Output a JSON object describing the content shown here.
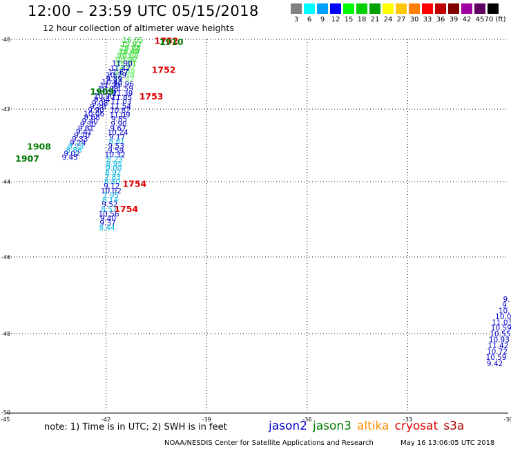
{
  "header": {
    "title": "12:00 – 23:59 UTC 05/15/2018",
    "subtitle": "12 hour collection of altimeter wave heights"
  },
  "legend": {
    "unit": "(ft)",
    "swatches": [
      {
        "label": "3",
        "color": "#808080"
      },
      {
        "label": "6",
        "color": "#00ffff"
      },
      {
        "label": "9",
        "color": "#00a0ff"
      },
      {
        "label": "12",
        "color": "#0000ff"
      },
      {
        "label": "15",
        "color": "#00ff00"
      },
      {
        "label": "18",
        "color": "#00d000"
      },
      {
        "label": "21",
        "color": "#00a000"
      },
      {
        "label": "24",
        "color": "#ffff00"
      },
      {
        "label": "27",
        "color": "#ffc800"
      },
      {
        "label": "30",
        "color": "#ff8000"
      },
      {
        "label": "33",
        "color": "#ff0000"
      },
      {
        "label": "36",
        "color": "#c00000"
      },
      {
        "label": "39",
        "color": "#800000"
      },
      {
        "label": "42",
        "color": "#a000a0"
      },
      {
        "label": "45",
        "color": "#600060"
      },
      {
        "label": "70",
        "color": "#000000"
      }
    ]
  },
  "axes": {
    "lon_ticks": [
      "-45",
      "-42",
      "-39",
      "-36",
      "-33",
      "-30"
    ],
    "lat_ticks": [
      "-40",
      "-42",
      "-44",
      "-46",
      "-48",
      "-50"
    ]
  },
  "colors": {
    "jason2": "#0000cc",
    "jason3": "#007a00",
    "altika": "#ff8c00",
    "cryosat": "#e00000",
    "s3a": "#b00000",
    "cyan": "#00b4e6",
    "green": "#22cc22",
    "lightgreen": "#66ee66"
  },
  "tracks": [
    {
      "id": "A",
      "points": [
        {
          "lon": -41.2,
          "lat": -40.02,
          "v": "16.05",
          "c": "green"
        },
        {
          "lon": -41.25,
          "lat": -40.14,
          "v": "15.92",
          "c": "green"
        },
        {
          "lon": -41.28,
          "lat": -40.24,
          "v": "16.08",
          "c": "green"
        },
        {
          "lon": -41.31,
          "lat": -40.35,
          "v": "16.49",
          "c": "green"
        },
        {
          "lon": -41.34,
          "lat": -40.46,
          "v": "16.88",
          "c": "green"
        },
        {
          "lon": -41.37,
          "lat": -40.57,
          "v": "17.32",
          "c": "green"
        },
        {
          "lon": -41.4,
          "lat": -40.69,
          "v": "15.11",
          "c": "green"
        },
        {
          "lon": -41.43,
          "lat": -40.8,
          "v": "14.07",
          "c": "lightgreen"
        },
        {
          "lon": -41.44,
          "lat": -40.92,
          "v": "12.49",
          "c": "lightgreen"
        },
        {
          "lon": -41.46,
          "lat": -41.03,
          "v": "12.59",
          "c": "lightgreen"
        },
        {
          "lon": -41.47,
          "lat": -41.14,
          "v": "12.42",
          "c": "lightgreen"
        },
        {
          "lon": -41.48,
          "lat": -41.28,
          "v": "10.96",
          "c": "jason2"
        },
        {
          "lon": -41.5,
          "lat": -41.41,
          "v": "11.59",
          "c": "jason2"
        },
        {
          "lon": -41.51,
          "lat": -41.54,
          "v": "11.39",
          "c": "jason2"
        },
        {
          "lon": -41.53,
          "lat": -41.66,
          "v": "11.85",
          "c": "jason2"
        },
        {
          "lon": -41.55,
          "lat": -41.78,
          "v": "11.03",
          "c": "jason2"
        },
        {
          "lon": -41.56,
          "lat": -41.91,
          "v": "11.54",
          "c": "jason2"
        },
        {
          "lon": -41.58,
          "lat": -42.03,
          "v": "10.82",
          "c": "jason2"
        },
        {
          "lon": -41.59,
          "lat": -42.15,
          "v": "11.09",
          "c": "jason2"
        },
        {
          "lon": -41.61,
          "lat": -42.27,
          "v": "9.85",
          "c": "jason2"
        },
        {
          "lon": -41.62,
          "lat": -42.4,
          "v": "9.90",
          "c": "jason2"
        },
        {
          "lon": -41.64,
          "lat": -42.52,
          "v": "9.67",
          "c": "jason2"
        },
        {
          "lon": -41.65,
          "lat": -42.64,
          "v": "10.24",
          "c": "jason2"
        },
        {
          "lon": -41.67,
          "lat": -42.76,
          "v": "9.17",
          "c": "jason2"
        },
        {
          "lon": -41.68,
          "lat": -42.89,
          "v": "8.61",
          "c": "cyan"
        },
        {
          "lon": -41.7,
          "lat": -43.01,
          "v": "9.53",
          "c": "jason2"
        },
        {
          "lon": -41.71,
          "lat": -43.13,
          "v": "9.59",
          "c": "jason2"
        },
        {
          "lon": -41.73,
          "lat": -43.25,
          "v": "10.32",
          "c": "jason2"
        },
        {
          "lon": -41.74,
          "lat": -43.38,
          "v": "8.23",
          "c": "cyan"
        },
        {
          "lon": -41.76,
          "lat": -43.5,
          "v": "8.95",
          "c": "cyan"
        },
        {
          "lon": -41.77,
          "lat": -43.62,
          "v": "9.00",
          "c": "cyan"
        },
        {
          "lon": -41.79,
          "lat": -43.74,
          "v": "8.92",
          "c": "cyan"
        },
        {
          "lon": -41.8,
          "lat": -43.87,
          "v": "7.83",
          "c": "cyan"
        },
        {
          "lon": -41.82,
          "lat": -43.99,
          "v": "8.80",
          "c": "cyan"
        },
        {
          "lon": -41.83,
          "lat": -44.11,
          "v": "9.12",
          "c": "jason2"
        },
        {
          "lon": -41.85,
          "lat": -44.24,
          "v": "10.02",
          "c": "jason2"
        },
        {
          "lon": -41.86,
          "lat": -44.36,
          "v": "7.95",
          "c": "cyan"
        },
        {
          "lon": -41.88,
          "lat": -44.48,
          "v": "8.14",
          "c": "cyan"
        },
        {
          "lon": -41.89,
          "lat": -44.6,
          "v": "9.52",
          "c": "jason2"
        },
        {
          "lon": -41.91,
          "lat": -44.73,
          "v": "8.57",
          "c": "cyan"
        },
        {
          "lon": -41.92,
          "lat": -44.85,
          "v": "10.56",
          "c": "jason2"
        },
        {
          "lon": -41.94,
          "lat": -44.97,
          "v": "9.40",
          "c": "jason2"
        },
        {
          "lon": -41.95,
          "lat": -45.09,
          "v": "9.37",
          "c": "jason2"
        },
        {
          "lon": -41.97,
          "lat": -45.22,
          "v": "8.44",
          "c": "cyan"
        }
      ]
    },
    {
      "id": "B",
      "points": [
        {
          "lon": -41.28,
          "lat": -40.26,
          "v": "14.17",
          "c": "lightgreen"
        },
        {
          "lon": -41.34,
          "lat": -40.38,
          "v": "13.60",
          "c": "lightgreen"
        },
        {
          "lon": -41.4,
          "lat": -40.48,
          "v": "13.17",
          "c": "lightgreen"
        },
        {
          "lon": -41.46,
          "lat": -40.58,
          "v": "12.49",
          "c": "lightgreen"
        },
        {
          "lon": -41.52,
          "lat": -40.68,
          "v": "11.90",
          "c": "jason2"
        },
        {
          "lon": -41.58,
          "lat": -40.83,
          "v": "11.47",
          "c": "jason2"
        },
        {
          "lon": -41.64,
          "lat": -40.93,
          "v": "11.67",
          "c": "jason2"
        },
        {
          "lon": -41.7,
          "lat": -41.02,
          "v": "10.79",
          "c": "jason2"
        },
        {
          "lon": -41.76,
          "lat": -41.12,
          "v": "9.89",
          "c": "jason2"
        },
        {
          "lon": -41.82,
          "lat": -41.22,
          "v": "10.43",
          "c": "jason2"
        },
        {
          "lon": -41.88,
          "lat": -41.32,
          "v": "11.20",
          "c": "jason2"
        },
        {
          "lon": -41.94,
          "lat": -41.42,
          "v": "10.98",
          "c": "jason2"
        },
        {
          "lon": -42.0,
          "lat": -41.52,
          "v": "10.29",
          "c": "jason2"
        },
        {
          "lon": -42.06,
          "lat": -41.62,
          "v": "10.90",
          "c": "jason2"
        },
        {
          "lon": -42.12,
          "lat": -41.72,
          "v": "9.64",
          "c": "jason2"
        },
        {
          "lon": -42.18,
          "lat": -41.82,
          "v": "9.08",
          "c": "jason2"
        },
        {
          "lon": -42.24,
          "lat": -41.92,
          "v": "9.28",
          "c": "jason2"
        },
        {
          "lon": -42.3,
          "lat": -42.02,
          "v": "9.90",
          "c": "jason2"
        },
        {
          "lon": -42.36,
          "lat": -42.12,
          "v": "10.06",
          "c": "jason2"
        },
        {
          "lon": -42.42,
          "lat": -42.22,
          "v": "9.68",
          "c": "jason2"
        },
        {
          "lon": -42.48,
          "lat": -42.32,
          "v": "9.40",
          "c": "jason2"
        },
        {
          "lon": -42.54,
          "lat": -42.42,
          "v": "9.30",
          "c": "jason2"
        },
        {
          "lon": -42.6,
          "lat": -42.52,
          "v": "9.81",
          "c": "jason2"
        },
        {
          "lon": -42.66,
          "lat": -42.62,
          "v": "9.41",
          "c": "jason2"
        },
        {
          "lon": -42.72,
          "lat": -42.72,
          "v": "9.70",
          "c": "jason2"
        },
        {
          "lon": -42.78,
          "lat": -42.82,
          "v": "9.33",
          "c": "jason2"
        },
        {
          "lon": -42.84,
          "lat": -42.92,
          "v": "9.24",
          "c": "jason2"
        },
        {
          "lon": -42.9,
          "lat": -43.02,
          "v": "8.73",
          "c": "cyan"
        },
        {
          "lon": -42.96,
          "lat": -43.12,
          "v": "8.86",
          "c": "cyan"
        },
        {
          "lon": -43.02,
          "lat": -43.22,
          "v": "9.02",
          "c": "jason2"
        },
        {
          "lon": -43.08,
          "lat": -43.32,
          "v": "9.45",
          "c": "jason2"
        }
      ]
    },
    {
      "id": "C",
      "points": [
        {
          "lon": -30.05,
          "lat": -47.1,
          "v": "9.",
          "c": "jason2"
        },
        {
          "lon": -30.08,
          "lat": -47.25,
          "v": "9.",
          "c": "jason2"
        },
        {
          "lon": -30.12,
          "lat": -47.4,
          "v": "10.",
          "c": "jason2"
        },
        {
          "lon": -30.15,
          "lat": -47.55,
          "v": "10.0",
          "c": "jason2"
        },
        {
          "lon": -30.18,
          "lat": -47.7,
          "v": "11.03",
          "c": "jason2"
        },
        {
          "lon": -30.21,
          "lat": -47.85,
          "v": "10.59",
          "c": "jason2"
        },
        {
          "lon": -30.24,
          "lat": -48.0,
          "v": "10.55",
          "c": "jason2"
        },
        {
          "lon": -30.27,
          "lat": -48.15,
          "v": "10.93",
          "c": "jason2"
        },
        {
          "lon": -30.3,
          "lat": -48.3,
          "v": "11.42",
          "c": "jason2"
        },
        {
          "lon": -30.33,
          "lat": -48.45,
          "v": "10.72",
          "c": "jason2"
        },
        {
          "lon": -30.36,
          "lat": -48.6,
          "v": "10.59",
          "c": "jason2"
        },
        {
          "lon": -30.4,
          "lat": -48.75,
          "v": "9.42",
          "c": "jason2"
        }
      ]
    }
  ],
  "time_labels": [
    {
      "lon": -40.2,
      "lat": -40.03,
      "t": "1752",
      "c": "cryosat"
    },
    {
      "lon": -40.05,
      "lat": -40.06,
      "t": "1910",
      "c": "jason3"
    },
    {
      "lon": -40.28,
      "lat": -40.86,
      "t": "1752",
      "c": "cryosat"
    },
    {
      "lon": -40.65,
      "lat": -41.62,
      "t": "1753",
      "c": "cryosat"
    },
    {
      "lon": -42.12,
      "lat": -41.49,
      "t": "1909",
      "c": "jason3"
    },
    {
      "lon": -44.0,
      "lat": -43.02,
      "t": "1908",
      "c": "jason3"
    },
    {
      "lon": -44.35,
      "lat": -43.35,
      "t": "1907",
      "c": "jason3"
    },
    {
      "lon": -41.15,
      "lat": -44.05,
      "t": "1754",
      "c": "cryosat"
    },
    {
      "lon": -41.4,
      "lat": -44.72,
      "t": "1754",
      "c": "cryosat"
    }
  ],
  "footer": {
    "note": "note:  1) Time is in UTC;  2) SWH is in feet",
    "satellites": [
      {
        "name": "jason2",
        "color": "#0000cc"
      },
      {
        "name": "jason3",
        "color": "#007a00"
      },
      {
        "name": "altika",
        "color": "#ff8c00"
      },
      {
        "name": "cryosat",
        "color": "#e00000"
      },
      {
        "name": "s3a",
        "color": "#b00000"
      }
    ],
    "credit": "NOAA/NESDIS Center for Satellite Applications and Research",
    "timestamp": "May 16 13:06:05 UTC 2018"
  }
}
